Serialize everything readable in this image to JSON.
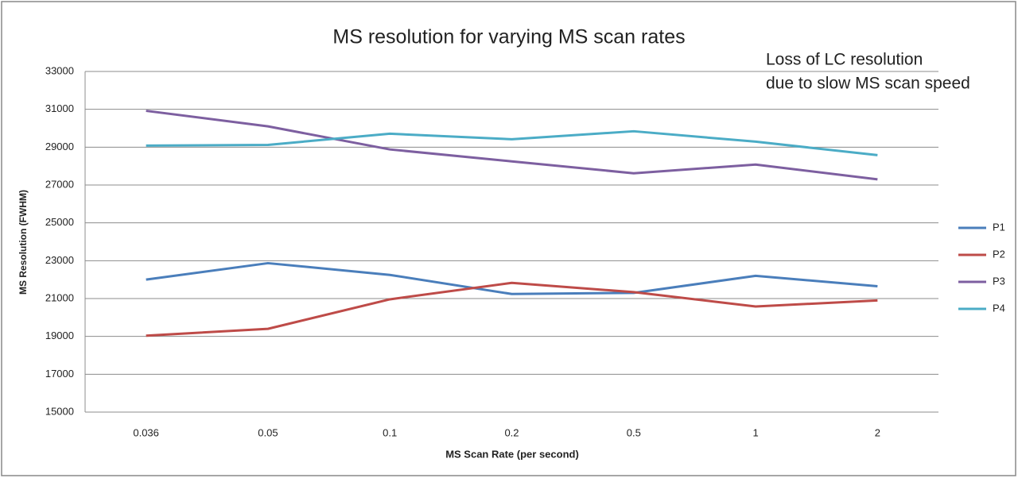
{
  "chart_data": {
    "type": "line",
    "title": "MS resolution for varying MS scan rates",
    "annotation": [
      "Loss of LC resolution",
      "due to slow MS scan speed"
    ],
    "x_label": "MS Scan Rate (per second)",
    "y_label": "MS Resolution (FWHM)",
    "categories": [
      "0.036",
      "0.05",
      "0.1",
      "0.2",
      "0.5",
      "1",
      "2"
    ],
    "series": [
      {
        "name": "P1",
        "color": "#4a7ebb",
        "values": [
          22000,
          22870,
          22250,
          21240,
          21300,
          22200,
          21650
        ]
      },
      {
        "name": "P2",
        "color": "#be4b48",
        "values": [
          19040,
          19400,
          20960,
          21830,
          21340,
          20580,
          20900
        ]
      },
      {
        "name": "P3",
        "color": "#7d5fa0",
        "values": [
          30920,
          30100,
          28880,
          28250,
          27620,
          28080,
          27300
        ]
      },
      {
        "name": "P4",
        "color": "#4bacc6",
        "values": [
          29080,
          29120,
          29710,
          29420,
          29840,
          29290,
          28580
        ]
      }
    ],
    "ylim": [
      15000,
      33000
    ],
    "yticks": [
      15000,
      17000,
      19000,
      21000,
      23000,
      25000,
      27000,
      29000,
      31000,
      33000
    ],
    "grid": true,
    "legend": "right"
  }
}
